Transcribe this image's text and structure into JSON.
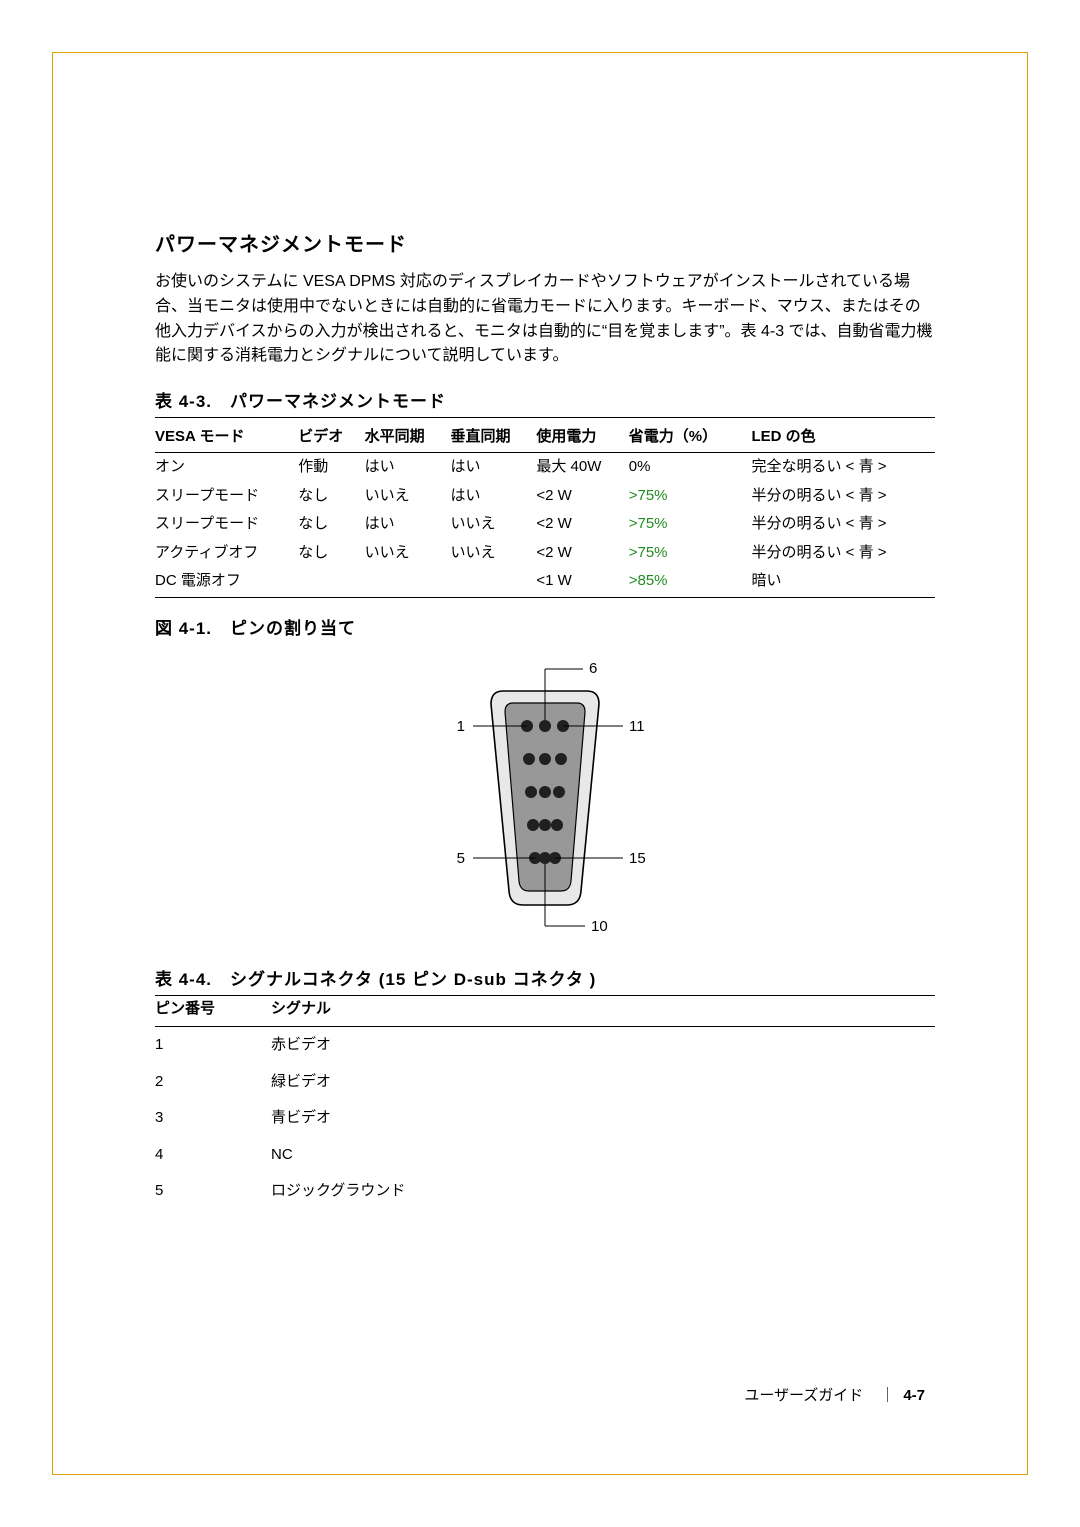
{
  "section": {
    "title": "パワーマネジメントモード",
    "body": "お使いのシステムに VESA DPMS 対応のディスプレイカードやソフトウェアがインストールされている場合、当モニタは使用中でないときには自動的に省電力モードに入ります。キーボード、マウス、またはその他入力デバイスからの入力が検出されると、モニタは自動的に“目を覚まします”。表 4-3 では、自動省電力機能に関する消耗電力とシグナルについて説明しています。"
  },
  "table43": {
    "caption": "表 4-3.　パワーマネジメントモード",
    "headers": [
      "VESA モード",
      "ビデオ",
      "水平同期",
      "垂直同期",
      "使用電力",
      "省電力（%）",
      "LED の色"
    ],
    "rows": [
      {
        "c0": "オン",
        "c1": "作動",
        "c2": "はい",
        "c3": "はい",
        "c4": "最大 40W",
        "c5": "0%",
        "c5color": "#000000",
        "c6": "完全な明るい < 青 >"
      },
      {
        "c0": "スリープモード",
        "c1": "なし",
        "c2": "いいえ",
        "c3": "はい",
        "c4": "<2 W",
        "c5": ">75%",
        "c5color": "#228b22",
        "c6": "半分の明るい < 青 >"
      },
      {
        "c0": "スリープモード",
        "c1": "なし",
        "c2": "はい",
        "c3": "いいえ",
        "c4": "<2 W",
        "c5": ">75%",
        "c5color": "#228b22",
        "c6": "半分の明るい < 青 >"
      },
      {
        "c0": "アクティブオフ",
        "c1": "なし",
        "c2": "いいえ",
        "c3": "いいえ",
        "c4": "<2 W",
        "c5": ">75%",
        "c5color": "#228b22",
        "c6": "半分の明るい < 青 >"
      },
      {
        "c0": "DC 電源オフ",
        "c1": "",
        "c2": "",
        "c3": "",
        "c4": "<1 W",
        "c5": ">85%",
        "c5color": "#228b22",
        "c6": "暗い"
      }
    ]
  },
  "figure41": {
    "caption": "図 4-1.　ピンの割り当て",
    "labels": {
      "l1": "1",
      "l5": "5",
      "l6": "6",
      "l10": "10",
      "l11": "11",
      "l15": "15"
    }
  },
  "table44": {
    "caption": "表 4-4.　シグナルコネクタ (15 ピン D-sub コネクタ )",
    "headers": [
      "ピン番号",
      "シグナル"
    ],
    "rows": [
      {
        "pin": "1",
        "sig": "赤ビデオ"
      },
      {
        "pin": "2",
        "sig": "緑ビデオ"
      },
      {
        "pin": "3",
        "sig": "青ビデオ"
      },
      {
        "pin": "4",
        "sig": "NC"
      },
      {
        "pin": "5",
        "sig": "ロジックグラウンド"
      }
    ]
  },
  "footer": {
    "label": "ユーザーズガイド",
    "sep": "｜",
    "page": "4-7"
  }
}
